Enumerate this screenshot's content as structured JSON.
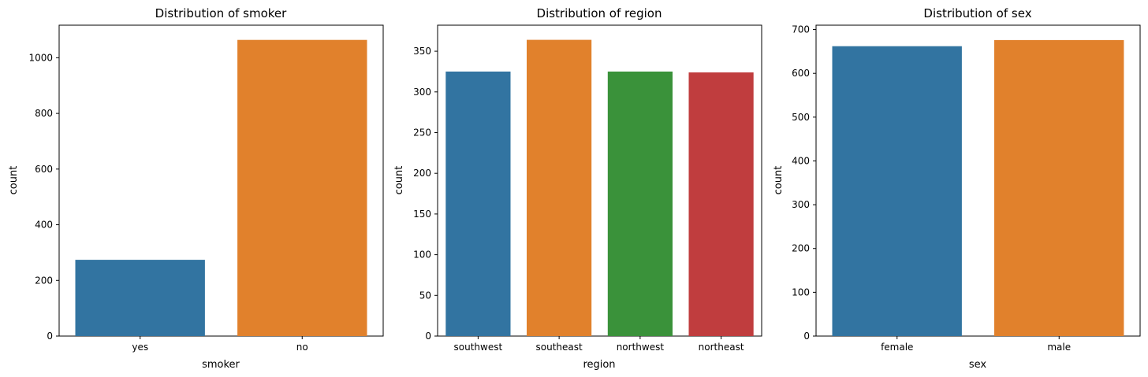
{
  "chart_data": [
    {
      "type": "bar",
      "title": "Distribution of smoker",
      "xlabel": "smoker",
      "ylabel": "count",
      "categories": [
        "yes",
        "no"
      ],
      "values": [
        274,
        1064
      ],
      "colors": [
        "#3274a1",
        "#e1812c"
      ],
      "yticks": [
        0,
        200,
        400,
        600,
        800,
        1000
      ],
      "ylim": [
        0,
        1117
      ],
      "grid": false
    },
    {
      "type": "bar",
      "title": "Distribution of region",
      "xlabel": "region",
      "ylabel": "count",
      "categories": [
        "southwest",
        "southeast",
        "northwest",
        "northeast"
      ],
      "values": [
        325,
        364,
        325,
        324
      ],
      "colors": [
        "#3274a1",
        "#e1812c",
        "#3a923a",
        "#c03d3e"
      ],
      "yticks": [
        0,
        50,
        100,
        150,
        200,
        250,
        300,
        350
      ],
      "ylim": [
        0,
        382
      ],
      "grid": false
    },
    {
      "type": "bar",
      "title": "Distribution of sex",
      "xlabel": "sex",
      "ylabel": "count",
      "categories": [
        "female",
        "male"
      ],
      "values": [
        662,
        676
      ],
      "colors": [
        "#3274a1",
        "#e1812c"
      ],
      "yticks": [
        0,
        100,
        200,
        300,
        400,
        500,
        600,
        700
      ],
      "ylim": [
        0,
        710
      ],
      "grid": false
    }
  ]
}
